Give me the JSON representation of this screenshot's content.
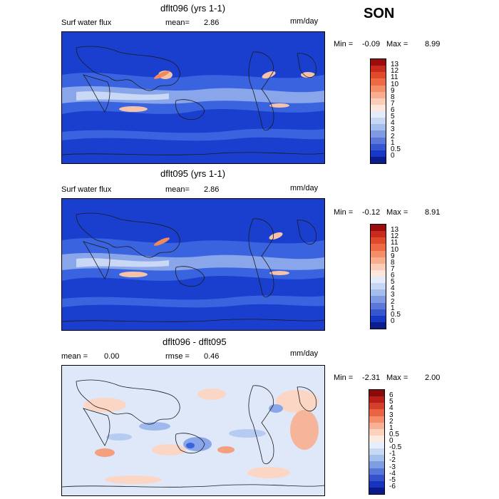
{
  "season": "SON",
  "panels": [
    {
      "title": "dflt096 (yrs 1-1)",
      "left_label": "Surf water flux",
      "stat_label": "mean=",
      "stat_value": "2.86",
      "units": "mm/day",
      "min_label": "Min =",
      "min_value": "-0.09",
      "max_label": "Max =",
      "max_value": "8.99",
      "colorbar": {
        "labels": [
          "13",
          "12",
          "11",
          "10",
          "9",
          "8",
          "7",
          "6",
          "5",
          "4",
          "3",
          "2",
          "1",
          "0.5",
          "0"
        ],
        "colors": [
          "#9b0d0d",
          "#c82a1c",
          "#e04a2a",
          "#ee6a45",
          "#f58d66",
          "#f8ad8e",
          "#fbccb7",
          "#fde7dc",
          "#e4ecf9",
          "#c6d6f3",
          "#a5bdec",
          "#8099e3",
          "#5b77da",
          "#3656d0",
          "#1738c4",
          "#0b1c8f"
        ]
      }
    },
    {
      "title": "dflt095 (yrs 1-1)",
      "left_label": "Surf water flux",
      "stat_label": "mean=",
      "stat_value": "2.86",
      "units": "mm/day",
      "min_label": "Min =",
      "min_value": "-0.12",
      "max_label": "Max =",
      "max_value": "8.91",
      "colorbar": {
        "labels": [
          "13",
          "12",
          "11",
          "10",
          "9",
          "8",
          "7",
          "6",
          "5",
          "4",
          "3",
          "2",
          "1",
          "0.5",
          "0"
        ],
        "colors": [
          "#9b0d0d",
          "#c82a1c",
          "#e04a2a",
          "#ee6a45",
          "#f58d66",
          "#f8ad8e",
          "#fbccb7",
          "#fde7dc",
          "#e4ecf9",
          "#c6d6f3",
          "#a5bdec",
          "#8099e3",
          "#5b77da",
          "#3656d0",
          "#1738c4",
          "#0b1c8f"
        ]
      }
    },
    {
      "title": "dflt096 - dflt095",
      "left_label": "mean =",
      "left_value": "0.00",
      "stat_label": "rmse =",
      "stat_value": "0.46",
      "units": "mm/day",
      "min_label": "Min =",
      "min_value": "-2.31",
      "max_label": "Max =",
      "max_value": "2.00",
      "colorbar": {
        "labels": [
          "6",
          "5",
          "4",
          "3",
          "2",
          "1",
          "0.5",
          "0",
          "-0.5",
          "-1",
          "-2",
          "-3",
          "-4",
          "-5",
          "-6"
        ],
        "colors": [
          "#8a0a0a",
          "#b81f18",
          "#d63f2a",
          "#ea6443",
          "#f58d6a",
          "#f9b195",
          "#fcd2bf",
          "#fdebe2",
          "#e6eefb",
          "#c9d9f4",
          "#a4bfec",
          "#7e9ce2",
          "#5777d8",
          "#3352cc",
          "#1734bd",
          "#0a1a8c"
        ]
      }
    }
  ],
  "colors": {
    "deep_blue": "#1a3fcf",
    "mid_blue": "#3a64df",
    "light_blue": "#a9c3f0",
    "pale": "#e8eefb",
    "peach": "#f6c2a8",
    "orange": "#f08a5c",
    "land_line": "#1a1a1a"
  }
}
